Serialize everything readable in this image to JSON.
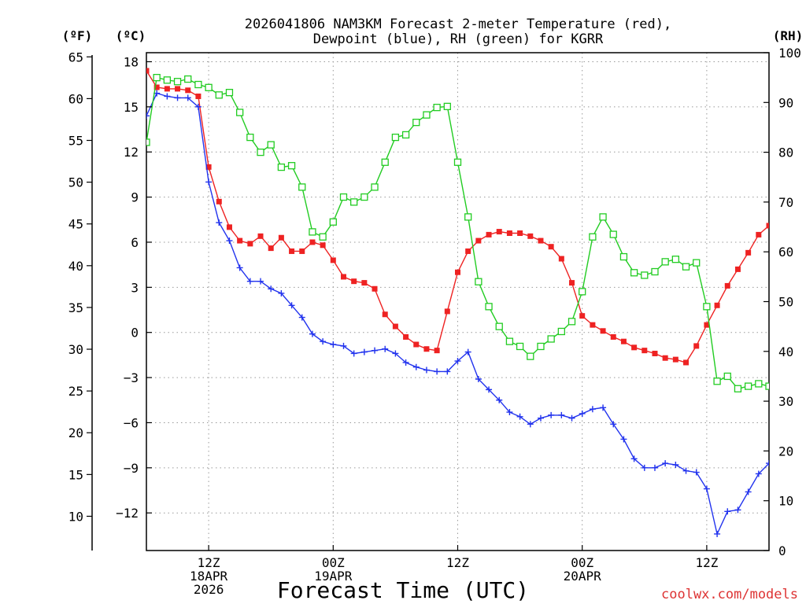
{
  "chart_data": {
    "type": "line",
    "title": "2026041806 NAM3KM Forecast 2-meter Temperature (red),",
    "subtitle": "Dewpoint (blue), RH (green) for KGRR",
    "xlabel": "Forecast Time (UTC)",
    "credit": "coolwx.com/models",
    "units": {
      "fahrenheit": "(ºF)",
      "celsius": "(ºC)",
      "rh": "(RH)"
    },
    "x_unit": "forecast hour",
    "xlim": [
      0,
      60
    ],
    "ylim_celsius": [
      -14.5,
      18.6
    ],
    "ylim_fahrenheit": [
      5.9,
      65.5
    ],
    "ylim_rh": [
      0,
      100
    ],
    "celsius_ticks": [
      "18",
      "15",
      "12",
      "9",
      "6",
      "3",
      "0",
      "−3",
      "−6",
      "−9",
      "−12"
    ],
    "fahrenheit_ticks": [
      "65",
      "60",
      "55",
      "50",
      "45",
      "40",
      "35",
      "30",
      "25",
      "20",
      "15",
      "10"
    ],
    "rh_ticks": [
      "100",
      "90",
      "80",
      "70",
      "60",
      "50",
      "40",
      "30",
      "20",
      "10",
      "0"
    ],
    "x_ticks": [
      {
        "hour": 6,
        "lines": [
          "12Z",
          "18APR",
          "2026"
        ]
      },
      {
        "hour": 18,
        "lines": [
          "00Z",
          "19APR"
        ]
      },
      {
        "hour": 30,
        "lines": [
          "12Z"
        ]
      },
      {
        "hour": 42,
        "lines": [
          "00Z",
          "20APR"
        ]
      },
      {
        "hour": 54,
        "lines": [
          "12Z"
        ]
      }
    ],
    "series": [
      {
        "name": "2-meter Temperature",
        "unit": "°C",
        "color": "#ee2222",
        "marker": "filled-square",
        "x": [
          0,
          1,
          2,
          3,
          4,
          5,
          6,
          7,
          8,
          9,
          10,
          11,
          12,
          13,
          14,
          15,
          16,
          17,
          18,
          19,
          20,
          21,
          22,
          23,
          24,
          25,
          26,
          27,
          28,
          29,
          30,
          31,
          32,
          33,
          34,
          35,
          36,
          37,
          38,
          39,
          40,
          41,
          42,
          43,
          44,
          45,
          46,
          47,
          48,
          49,
          50,
          51,
          52,
          53,
          54,
          55,
          56,
          57,
          58,
          59,
          60
        ],
        "values": [
          17.4,
          16.3,
          16.2,
          16.2,
          16.1,
          15.7,
          11.0,
          8.7,
          7.0,
          6.1,
          5.9,
          6.4,
          5.6,
          6.3,
          5.4,
          5.4,
          6.0,
          5.8,
          4.8,
          3.7,
          3.4,
          3.3,
          2.9,
          1.2,
          0.4,
          -0.3,
          -0.8,
          -1.1,
          -1.2,
          1.4,
          4.0,
          5.4,
          6.1,
          6.5,
          6.7,
          6.6,
          6.6,
          6.4,
          6.1,
          5.7,
          4.9,
          3.3,
          1.1,
          0.5,
          0.1,
          -0.3,
          -0.6,
          -1.0,
          -1.2,
          -1.4,
          -1.7,
          -1.8,
          -2.0,
          -0.9,
          0.5,
          1.8,
          3.1,
          4.2,
          5.3,
          6.5,
          7.1
        ]
      },
      {
        "name": "Dewpoint",
        "unit": "°C",
        "color": "#2233ee",
        "marker": "plus",
        "x": [
          0,
          1,
          2,
          3,
          4,
          5,
          6,
          7,
          8,
          9,
          10,
          11,
          12,
          13,
          14,
          15,
          16,
          17,
          18,
          19,
          20,
          21,
          22,
          23,
          24,
          25,
          26,
          27,
          28,
          29,
          30,
          31,
          32,
          33,
          34,
          35,
          36,
          37,
          38,
          39,
          40,
          41,
          42,
          43,
          44,
          45,
          46,
          47,
          48,
          49,
          50,
          51,
          52,
          53,
          54,
          55,
          56,
          57,
          58,
          59,
          60
        ],
        "values": [
          14.4,
          15.9,
          15.7,
          15.6,
          15.6,
          15.0,
          10.0,
          7.3,
          6.1,
          4.3,
          3.4,
          3.4,
          2.9,
          2.6,
          1.8,
          1.0,
          -0.1,
          -0.6,
          -0.8,
          -0.9,
          -1.4,
          -1.3,
          -1.2,
          -1.1,
          -1.4,
          -2.0,
          -2.3,
          -2.5,
          -2.6,
          -2.6,
          -1.9,
          -1.3,
          -3.1,
          -3.8,
          -4.5,
          -5.3,
          -5.6,
          -6.1,
          -5.7,
          -5.5,
          -5.5,
          -5.7,
          -5.4,
          -5.1,
          -5.0,
          -6.1,
          -7.1,
          -8.4,
          -9.0,
          -9.0,
          -8.7,
          -8.8,
          -9.2,
          -9.3,
          -10.4,
          -13.4,
          -11.9,
          -11.8,
          -10.6,
          -9.4,
          -8.7
        ]
      },
      {
        "name": "RH",
        "unit": "%",
        "color": "#22cc22",
        "marker": "open-square",
        "x": [
          0,
          1,
          2,
          3,
          4,
          5,
          6,
          7,
          8,
          9,
          10,
          11,
          12,
          13,
          14,
          15,
          16,
          17,
          18,
          19,
          20,
          21,
          22,
          23,
          24,
          25,
          26,
          27,
          28,
          29,
          30,
          31,
          32,
          33,
          34,
          35,
          36,
          37,
          38,
          39,
          40,
          41,
          42,
          43,
          44,
          45,
          46,
          47,
          48,
          49,
          50,
          51,
          52,
          53,
          54,
          55,
          56,
          57,
          58,
          59,
          60
        ],
        "values": [
          82,
          95,
          94.5,
          94.2,
          94.7,
          93.6,
          93,
          91.5,
          92,
          88,
          83,
          80,
          81.5,
          77,
          77.3,
          73,
          64,
          63,
          66,
          71,
          70,
          71,
          73,
          78,
          83,
          83.5,
          86,
          87.5,
          89,
          89.2,
          78,
          67,
          54,
          49,
          45,
          42,
          41,
          39,
          41,
          42.5,
          44,
          46,
          52,
          63,
          67,
          63.5,
          59,
          55.8,
          55.3,
          56,
          58,
          58.5,
          57,
          57.8,
          49,
          34,
          35,
          32.5,
          33,
          33.5,
          33
        ]
      }
    ]
  }
}
